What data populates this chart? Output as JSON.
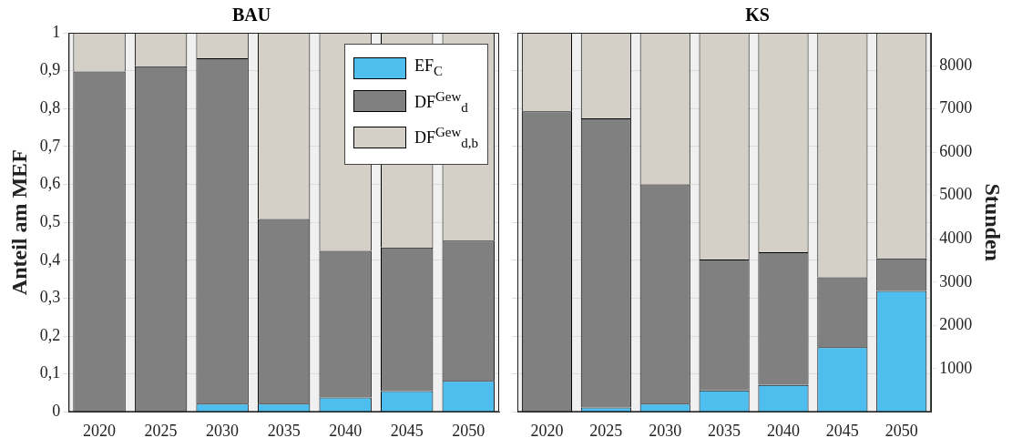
{
  "chart_data": [
    {
      "type": "bar",
      "title": "BAU",
      "ylabel": "Anteil am MEF",
      "stacked": true,
      "grid": "y",
      "legend": "top right",
      "categories": [
        "2020",
        "2025",
        "2030",
        "2035",
        "2040",
        "2045",
        "2050"
      ],
      "ylim": [
        0,
        1
      ],
      "yticks": [
        0,
        {
          "value": 0.1,
          "label": "0,1"
        },
        {
          "value": 0.2,
          "label": "0,2"
        },
        {
          "value": 0.3,
          "label": "0,3"
        },
        {
          "value": 0.4,
          "label": "0,4"
        },
        {
          "value": 0.5,
          "label": "0,5"
        },
        {
          "value": 0.6,
          "label": "0,6"
        },
        {
          "value": 0.7,
          "label": "0,7"
        },
        {
          "value": 0.8,
          "label": "0,8"
        },
        {
          "value": 0.9,
          "label": "0,9"
        },
        1
      ],
      "series": [
        {
          "name": "EF$_{C}$",
          "color": "#4dbeee",
          "values": [
            0,
            0,
            0.022,
            0.022,
            0.038,
            0.055,
            0.082
          ]
        },
        {
          "name": "DF$^{Gew}$$_{d}$",
          "color": "#808080",
          "values": [
            0.898,
            0.912,
            0.911,
            0.487,
            0.387,
            0.379,
            0.37
          ]
        },
        {
          "name": "DF$^{Gew}$$_{d,b}$",
          "color": "#d4d0c8",
          "values": [
            0.102,
            0.088,
            0.067,
            0.491,
            0.575,
            0.566,
            0.548
          ]
        }
      ]
    },
    {
      "type": "bar",
      "title": "KS",
      "y2label": "Stunden",
      "stacked": true,
      "grid": "y",
      "categories": [
        "2020",
        "2025",
        "2030",
        "2035",
        "2040",
        "2045",
        "2050"
      ],
      "ylim": [
        0,
        1
      ],
      "tick_labels": [
        "x",
        "y2"
      ],
      "y2lim": [
        0,
        8760
      ],
      "y2ticks": [
        1000,
        2000,
        3000,
        4000,
        5000,
        6000,
        7000,
        8000
      ],
      "series": [
        {
          "color": "#4dbeee",
          "values": [
            0,
            0.012,
            0.022,
            0.057,
            0.071,
            0.171,
            0.319
          ]
        },
        {
          "color": "#808080",
          "values": [
            0.793,
            0.762,
            0.578,
            0.345,
            0.35,
            0.184,
            0.086
          ]
        },
        {
          "color": "#d4d0c8",
          "values": [
            0.207,
            0.226,
            0.4,
            0.598,
            0.579,
            0.645,
            0.595
          ]
        }
      ]
    }
  ]
}
